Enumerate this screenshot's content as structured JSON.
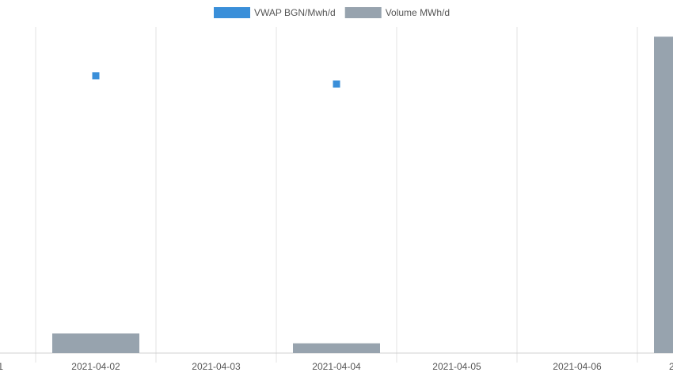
{
  "chart_data": {
    "type": "bar-scatter",
    "categories": [
      "1",
      "2021-04-02",
      "2021-04-03",
      "2021-04-04",
      "2021-04-05",
      "2021-04-06",
      "2"
    ],
    "series": [
      {
        "name": "VWAP BGN/Mwh/d",
        "color": "#3a8fd9",
        "type": "scatter",
        "axis": "y2",
        "values": [
          null,
          85,
          null,
          82.5,
          null,
          null,
          null
        ]
      },
      {
        "name": "Volume MWh/d",
        "color": "#97a3ae",
        "type": "bar",
        "values": [
          null,
          6,
          null,
          3,
          null,
          null,
          97
        ]
      }
    ],
    "ylim": [
      0,
      100
    ],
    "y2lim": [
      0,
      100
    ],
    "legend": "top"
  }
}
